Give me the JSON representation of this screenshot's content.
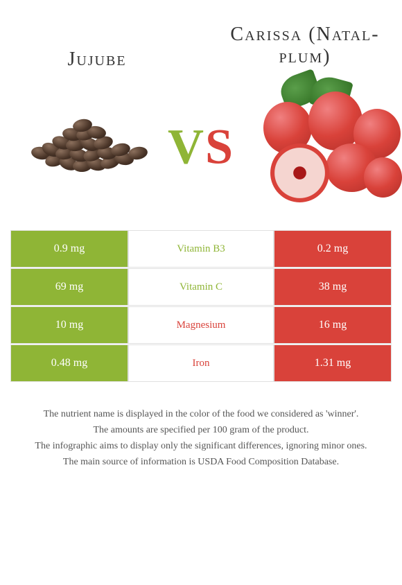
{
  "foods": {
    "left": {
      "title": "Jujube",
      "color": "#8fb536"
    },
    "right": {
      "title": "Carissa (Natal-plum)",
      "color": "#d9423a"
    }
  },
  "vs": {
    "v": "V",
    "s": "S"
  },
  "nutrients": [
    {
      "name": "Vitamin B3",
      "left": "0.9 mg",
      "right": "0.2 mg",
      "winner": "left"
    },
    {
      "name": "Vitamin C",
      "left": "69 mg",
      "right": "38 mg",
      "winner": "left"
    },
    {
      "name": "Magnesium",
      "left": "10 mg",
      "right": "16 mg",
      "winner": "right"
    },
    {
      "name": "Iron",
      "left": "0.48 mg",
      "right": "1.31 mg",
      "winner": "right"
    }
  ],
  "notes": {
    "line1": "The nutrient name is displayed in the color of the food we considered as 'winner'.",
    "line2": "The amounts are specified per 100 gram of the product.",
    "line3": "The infographic aims to display only the significant differences, ignoring minor ones.",
    "line4": "The main source of information is USDA Food Composition Database."
  }
}
